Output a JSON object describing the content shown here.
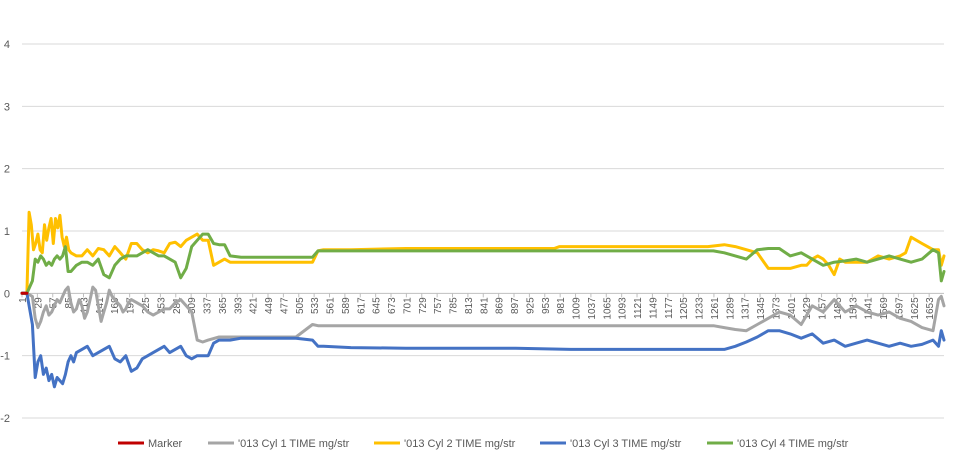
{
  "chart_data": {
    "type": "line",
    "title": "",
    "xlabel": "",
    "ylabel": "",
    "xlim": [
      1,
      1680
    ],
    "ylim": [
      -2,
      4
    ],
    "y_ticks": [
      "4",
      "3",
      "2",
      "1",
      "0",
      "-1",
      "-2"
    ],
    "y_tick_values": [
      4,
      3,
      2,
      1,
      0,
      -1,
      -2
    ],
    "x_ticks": [
      "1",
      "29",
      "57",
      "85",
      "113",
      "141",
      "169",
      "197",
      "225",
      "253",
      "281",
      "309",
      "337",
      "365",
      "393",
      "421",
      "449",
      "477",
      "505",
      "533",
      "561",
      "589",
      "617",
      "645",
      "673",
      "701",
      "729",
      "757",
      "785",
      "813",
      "841",
      "869",
      "897",
      "925",
      "953",
      "981",
      "1009",
      "1037",
      "1065",
      "1093",
      "1121",
      "1149",
      "1177",
      "1205",
      "1233",
      "1261",
      "1289",
      "1317",
      "1345",
      "1373",
      "1401",
      "1429",
      "1457",
      "1485",
      "1513",
      "1541",
      "1569",
      "1597",
      "1625",
      "1653"
    ],
    "x_tick_values": [
      1,
      29,
      57,
      85,
      113,
      141,
      169,
      197,
      225,
      253,
      281,
      309,
      337,
      365,
      393,
      421,
      449,
      477,
      505,
      533,
      561,
      589,
      617,
      645,
      673,
      701,
      729,
      757,
      785,
      813,
      841,
      869,
      897,
      925,
      953,
      981,
      1009,
      1037,
      1065,
      1093,
      1121,
      1149,
      1177,
      1205,
      1233,
      1261,
      1289,
      1317,
      1345,
      1373,
      1401,
      1429,
      1457,
      1485,
      1513,
      1541,
      1569,
      1597,
      1625,
      1653
    ],
    "gridlines": "horizontal",
    "legend_position": "bottom",
    "series": [
      {
        "name": "Marker",
        "color": "#c00000",
        "x": [
          1,
          10
        ],
        "y": [
          0,
          0
        ]
      },
      {
        "name": "'013 Cyl 1 TIME  mg/str",
        "color": "#a5a5a5",
        "x": [
          1,
          10,
          20,
          25,
          30,
          35,
          40,
          45,
          50,
          55,
          60,
          65,
          70,
          75,
          80,
          85,
          90,
          95,
          100,
          105,
          110,
          115,
          120,
          125,
          130,
          135,
          140,
          145,
          150,
          155,
          160,
          165,
          170,
          175,
          180,
          185,
          190,
          195,
          200,
          210,
          220,
          230,
          240,
          250,
          260,
          270,
          280,
          290,
          300,
          310,
          320,
          330,
          340,
          360,
          380,
          400,
          450,
          500,
          530,
          540,
          550,
          600,
          700,
          800,
          900,
          1000,
          1100,
          1200,
          1260,
          1280,
          1300,
          1320,
          1340,
          1360,
          1380,
          1400,
          1420,
          1440,
          1460,
          1480,
          1500,
          1520,
          1540,
          1560,
          1580,
          1600,
          1620,
          1640,
          1660,
          1670,
          1675,
          1680
        ],
        "y": [
          0,
          0,
          -0.05,
          -0.4,
          -0.55,
          -0.45,
          -0.3,
          -0.2,
          -0.35,
          -0.3,
          -0.2,
          -0.1,
          -0.15,
          -0.05,
          0.05,
          0.1,
          -0.15,
          -0.3,
          -0.25,
          -0.1,
          -0.2,
          -0.4,
          -0.3,
          -0.1,
          0.1,
          0.05,
          -0.2,
          -0.45,
          -0.3,
          -0.15,
          0.05,
          -0.05,
          -0.1,
          -0.15,
          -0.2,
          -0.3,
          -0.25,
          -0.15,
          -0.1,
          -0.15,
          -0.2,
          -0.3,
          -0.35,
          -0.3,
          -0.25,
          -0.25,
          -0.15,
          -0.1,
          -0.2,
          -0.3,
          -0.75,
          -0.78,
          -0.75,
          -0.7,
          -0.7,
          -0.7,
          -0.7,
          -0.7,
          -0.5,
          -0.52,
          -0.52,
          -0.52,
          -0.52,
          -0.52,
          -0.52,
          -0.52,
          -0.52,
          -0.52,
          -0.52,
          -0.55,
          -0.58,
          -0.6,
          -0.5,
          -0.4,
          -0.3,
          -0.35,
          -0.5,
          -0.2,
          -0.3,
          -0.1,
          -0.3,
          -0.2,
          -0.3,
          -0.35,
          -0.3,
          -0.4,
          -0.45,
          -0.55,
          -0.6,
          -0.1,
          -0.05,
          -0.2
        ]
      },
      {
        "name": "'013 Cyl 2 TIME  mg/str",
        "color": "#ffc000",
        "x": [
          1,
          10,
          14,
          18,
          22,
          26,
          30,
          34,
          38,
          42,
          46,
          50,
          54,
          58,
          62,
          66,
          70,
          74,
          78,
          82,
          86,
          90,
          100,
          110,
          120,
          130,
          140,
          150,
          160,
          170,
          180,
          190,
          200,
          210,
          220,
          230,
          240,
          250,
          260,
          270,
          280,
          290,
          300,
          310,
          320,
          330,
          340,
          350,
          360,
          370,
          380,
          390,
          400,
          450,
          500,
          530,
          540,
          550,
          600,
          700,
          800,
          900,
          970,
          980,
          1000,
          1100,
          1200,
          1250,
          1280,
          1300,
          1320,
          1340,
          1360,
          1380,
          1400,
          1420,
          1430,
          1440,
          1450,
          1460,
          1470,
          1480,
          1490,
          1500,
          1520,
          1540,
          1560,
          1580,
          1600,
          1610,
          1620,
          1630,
          1640,
          1650,
          1660,
          1670,
          1675,
          1680
        ],
        "y": [
          0,
          0,
          1.3,
          1.1,
          0.7,
          0.8,
          0.95,
          0.7,
          0.65,
          1.1,
          0.85,
          1.05,
          1.2,
          0.8,
          1.2,
          1.05,
          1.25,
          0.9,
          0.75,
          0.9,
          0.7,
          0.65,
          0.6,
          0.6,
          0.7,
          0.6,
          0.72,
          0.7,
          0.6,
          0.75,
          0.65,
          0.55,
          0.8,
          0.8,
          0.7,
          0.65,
          0.7,
          0.68,
          0.65,
          0.8,
          0.82,
          0.75,
          0.85,
          0.9,
          0.95,
          0.85,
          0.85,
          0.45,
          0.5,
          0.55,
          0.5,
          0.5,
          0.5,
          0.5,
          0.5,
          0.5,
          0.68,
          0.7,
          0.7,
          0.72,
          0.72,
          0.72,
          0.72,
          0.75,
          0.75,
          0.75,
          0.75,
          0.75,
          0.78,
          0.75,
          0.7,
          0.65,
          0.4,
          0.4,
          0.4,
          0.45,
          0.45,
          0.55,
          0.6,
          0.55,
          0.45,
          0.3,
          0.55,
          0.5,
          0.5,
          0.5,
          0.6,
          0.55,
          0.6,
          0.65,
          0.9,
          0.85,
          0.8,
          0.75,
          0.7,
          0.7,
          0.45,
          0.6
        ]
      },
      {
        "name": "'013 Cyl 3 TIME  mg/str",
        "color": "#4472c4",
        "x": [
          1,
          10,
          20,
          25,
          30,
          35,
          40,
          45,
          50,
          55,
          60,
          65,
          70,
          75,
          80,
          85,
          90,
          95,
          100,
          110,
          120,
          130,
          140,
          150,
          160,
          170,
          180,
          190,
          200,
          210,
          220,
          230,
          240,
          250,
          260,
          270,
          280,
          290,
          300,
          310,
          320,
          330,
          340,
          350,
          360,
          380,
          400,
          450,
          500,
          530,
          540,
          550,
          600,
          700,
          800,
          900,
          1000,
          1100,
          1200,
          1260,
          1280,
          1300,
          1320,
          1340,
          1360,
          1380,
          1400,
          1420,
          1440,
          1460,
          1480,
          1500,
          1520,
          1540,
          1560,
          1580,
          1600,
          1620,
          1640,
          1660,
          1670,
          1675,
          1680
        ],
        "y": [
          0,
          0,
          -0.5,
          -1.35,
          -1.1,
          -1.0,
          -1.3,
          -1.2,
          -1.4,
          -1.3,
          -1.5,
          -1.35,
          -1.4,
          -1.45,
          -1.3,
          -1.1,
          -1.0,
          -1.1,
          -0.95,
          -0.9,
          -0.85,
          -1.0,
          -0.95,
          -0.9,
          -0.85,
          -1.05,
          -1.1,
          -1.0,
          -1.25,
          -1.2,
          -1.05,
          -1.0,
          -0.95,
          -0.9,
          -0.85,
          -0.95,
          -0.9,
          -0.85,
          -1.0,
          -1.05,
          -1.0,
          -1.0,
          -1.0,
          -0.8,
          -0.75,
          -0.75,
          -0.72,
          -0.72,
          -0.72,
          -0.75,
          -0.85,
          -0.85,
          -0.87,
          -0.88,
          -0.88,
          -0.88,
          -0.9,
          -0.9,
          -0.9,
          -0.9,
          -0.9,
          -0.85,
          -0.78,
          -0.7,
          -0.6,
          -0.6,
          -0.65,
          -0.72,
          -0.65,
          -0.8,
          -0.75,
          -0.85,
          -0.8,
          -0.75,
          -0.8,
          -0.85,
          -0.8,
          -0.85,
          -0.82,
          -0.75,
          -0.85,
          -0.6,
          -0.75
        ]
      },
      {
        "name": "'013 Cyl 4 TIME  mg/str",
        "color": "#70ad47",
        "x": [
          1,
          10,
          20,
          25,
          30,
          35,
          40,
          45,
          50,
          55,
          60,
          65,
          70,
          75,
          80,
          85,
          90,
          100,
          110,
          120,
          130,
          140,
          150,
          160,
          170,
          180,
          190,
          200,
          210,
          220,
          230,
          240,
          250,
          260,
          270,
          280,
          290,
          300,
          310,
          320,
          330,
          340,
          350,
          360,
          370,
          380,
          400,
          450,
          500,
          530,
          540,
          550,
          600,
          700,
          800,
          900,
          1000,
          1100,
          1200,
          1260,
          1280,
          1300,
          1320,
          1340,
          1360,
          1380,
          1400,
          1420,
          1440,
          1460,
          1480,
          1500,
          1520,
          1540,
          1560,
          1580,
          1600,
          1620,
          1640,
          1660,
          1670,
          1675,
          1680
        ],
        "y": [
          0,
          0,
          0.2,
          0.55,
          0.5,
          0.6,
          0.55,
          0.45,
          0.5,
          0.45,
          0.55,
          0.6,
          0.55,
          0.6,
          0.75,
          0.35,
          0.35,
          0.45,
          0.5,
          0.5,
          0.45,
          0.55,
          0.3,
          0.25,
          0.45,
          0.55,
          0.6,
          0.6,
          0.6,
          0.65,
          0.7,
          0.65,
          0.6,
          0.6,
          0.55,
          0.5,
          0.25,
          0.4,
          0.75,
          0.85,
          0.95,
          0.95,
          0.8,
          0.78,
          0.78,
          0.6,
          0.58,
          0.58,
          0.58,
          0.58,
          0.68,
          0.68,
          0.68,
          0.68,
          0.68,
          0.68,
          0.68,
          0.68,
          0.68,
          0.68,
          0.65,
          0.6,
          0.55,
          0.7,
          0.72,
          0.72,
          0.6,
          0.65,
          0.55,
          0.45,
          0.5,
          0.52,
          0.55,
          0.5,
          0.55,
          0.6,
          0.55,
          0.5,
          0.55,
          0.7,
          0.65,
          0.2,
          0.35
        ]
      }
    ]
  }
}
